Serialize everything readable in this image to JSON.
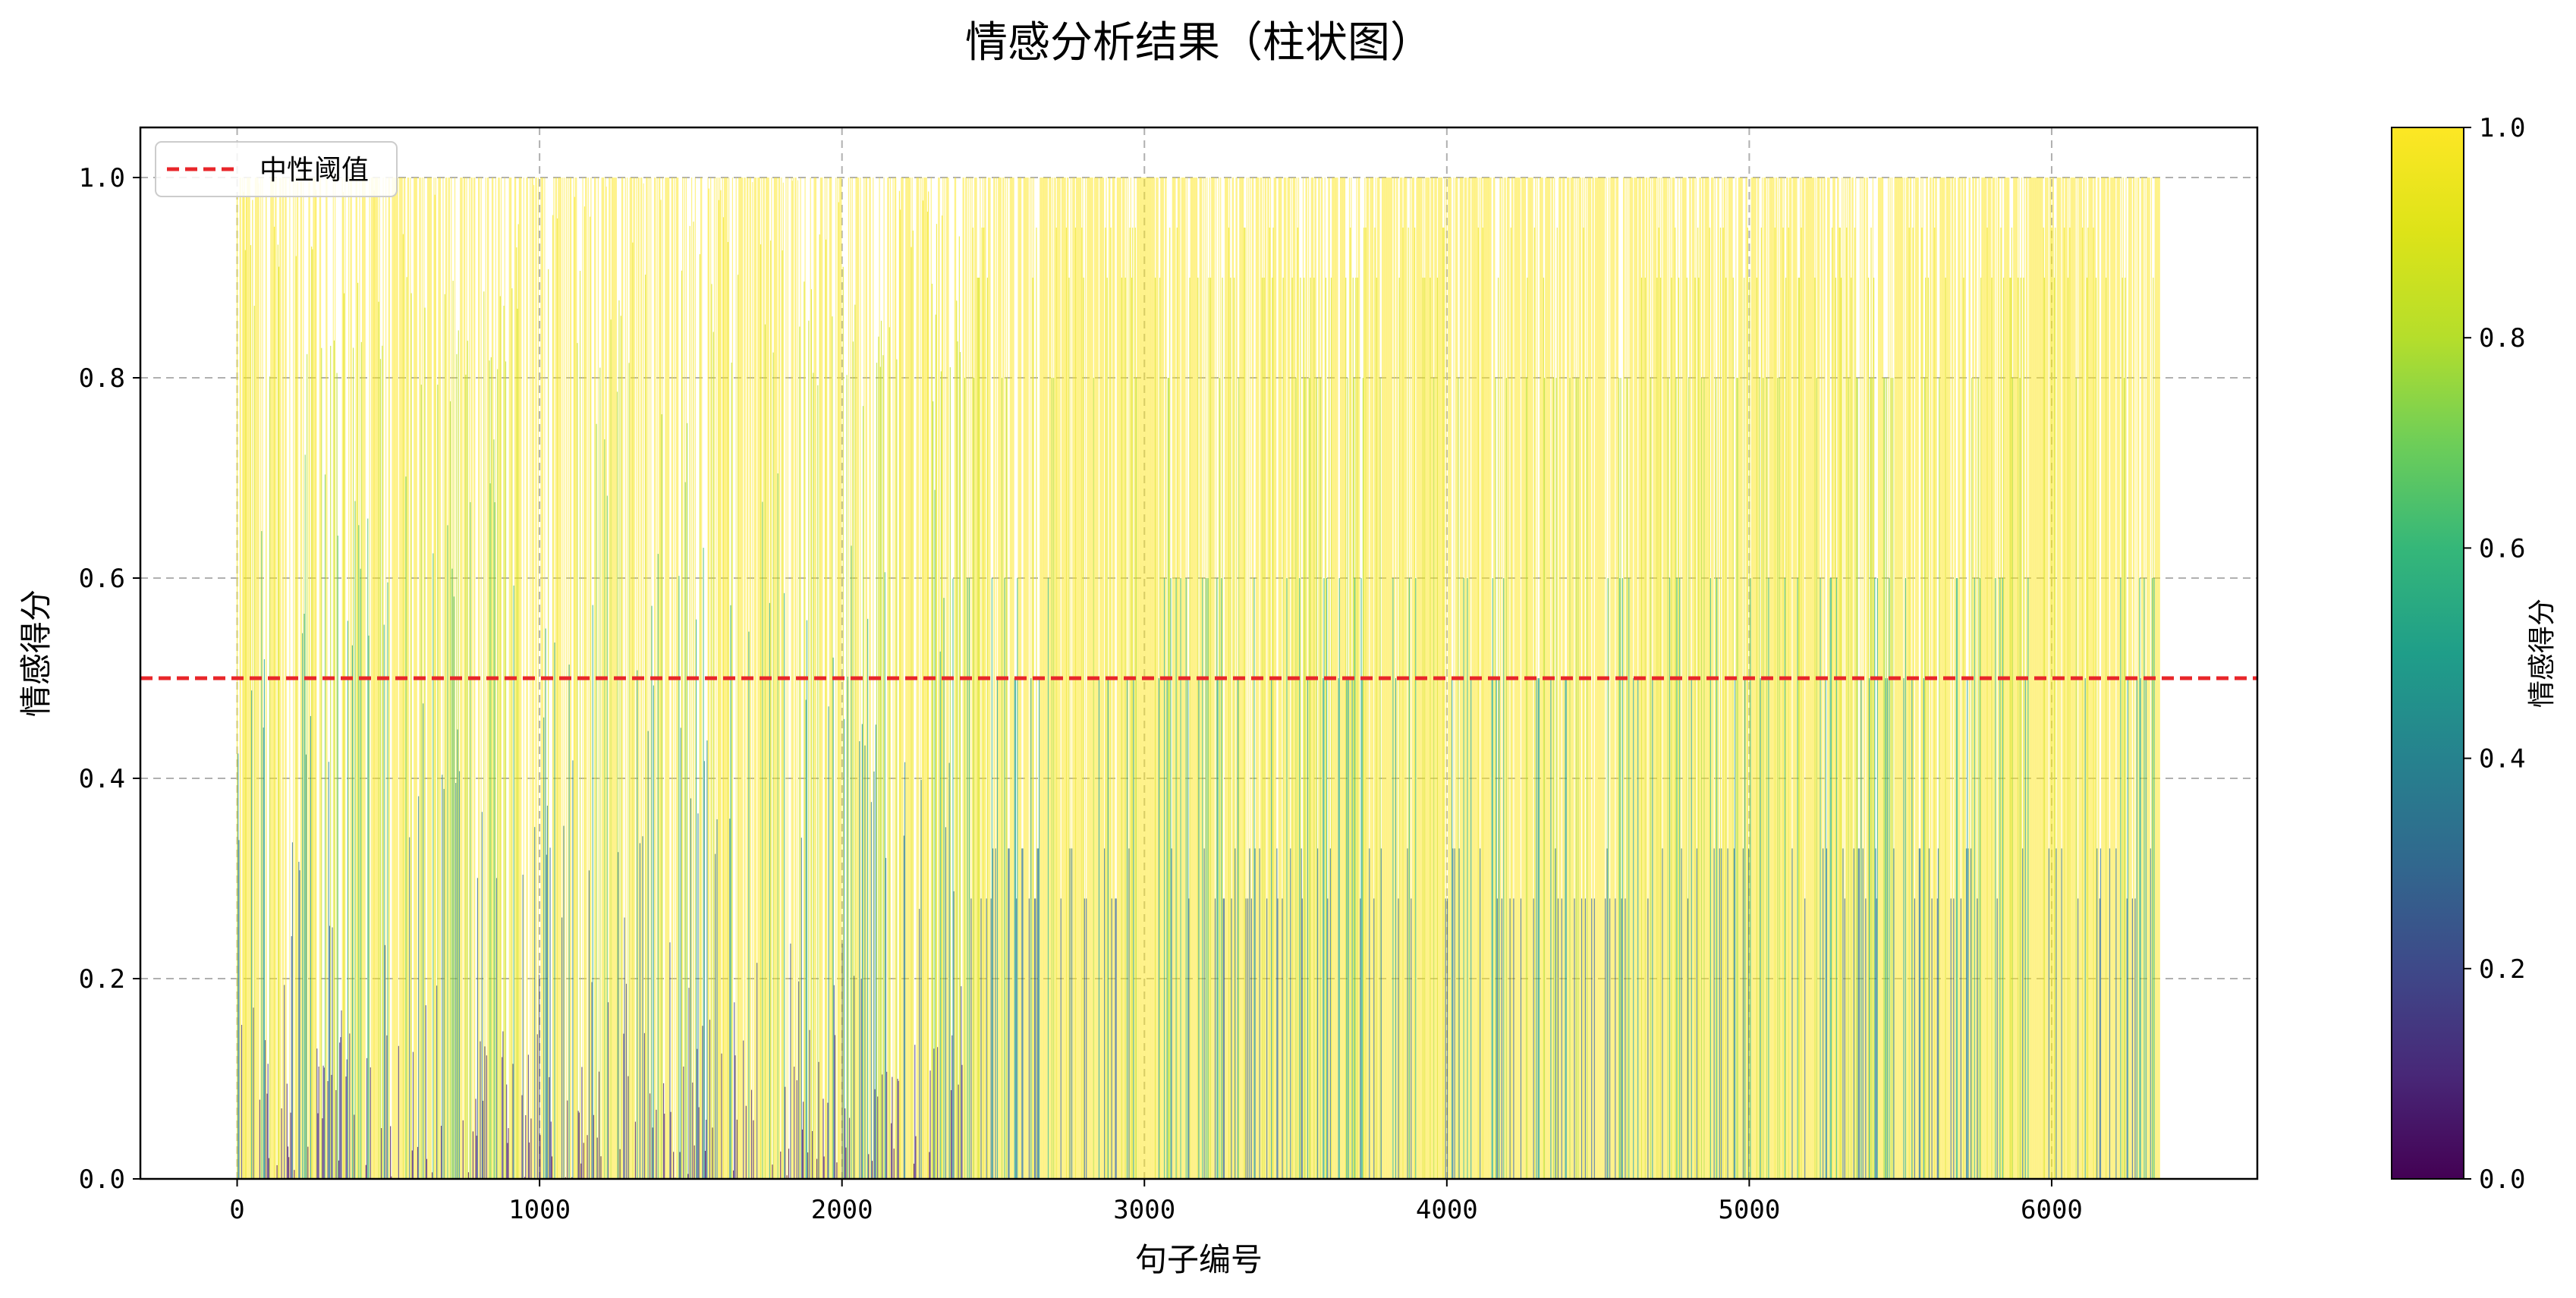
{
  "chart_data": {
    "type": "bar",
    "title": "情感分析结果（柱状图）",
    "xlabel": "句子编号",
    "ylabel": "情感得分",
    "xlim": [
      -320,
      6680
    ],
    "ylim": [
      0,
      1.05
    ],
    "x_ticks": [
      "0",
      "1000",
      "2000",
      "3000",
      "4000",
      "5000",
      "6000"
    ],
    "y_ticks": [
      "0.0",
      "0.2",
      "0.4",
      "0.6",
      "0.8",
      "1.0"
    ],
    "grid": true,
    "sentence_count": 6360,
    "bar_value_levels": [
      1.0,
      0.95,
      0.9,
      0.8,
      0.6,
      0.5,
      0.33,
      0.28
    ],
    "early_region_note": "sentences 0-2400 show more varied scores including low values near 0",
    "threshold": {
      "label": "中性阈值",
      "value": 0.5,
      "color": "#e8262a",
      "style": "dashed"
    },
    "legend": {
      "entries": [
        "中性阈值"
      ],
      "placement": "upper-left"
    },
    "colorbar": {
      "label": "情感得分",
      "colormap": "viridis",
      "range": [
        0.0,
        1.0
      ],
      "ticks": [
        "0.0",
        "0.2",
        "0.4",
        "0.6",
        "0.8",
        "1.0"
      ]
    }
  }
}
